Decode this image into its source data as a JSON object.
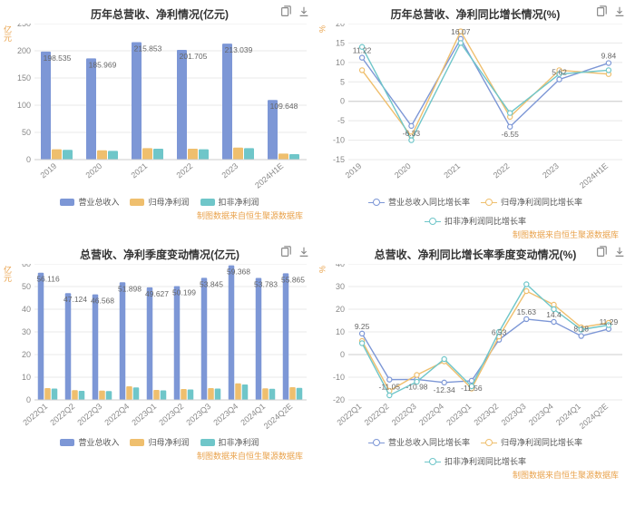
{
  "footer_note": "制图数据来自恒生聚源数据库",
  "common": {
    "grid_color": "#e8e8e8",
    "axis_color": "#cccccc",
    "tick_label_color": "#888888",
    "tick_fontsize": 9,
    "bar_label_color": "#666666",
    "bar_label_fontsize": 8.5,
    "background_color": "#ffffff"
  },
  "chart1": {
    "title": "历年总营收、净利情况(亿元)",
    "yaxis_title": "亿元",
    "type": "grouped-bar",
    "categories": [
      "2019",
      "2020",
      "2021",
      "2022",
      "2023",
      "2024H1E"
    ],
    "series": [
      {
        "name": "营业总收入",
        "color": "#7d97d6",
        "values": [
          198.535,
          185.969,
          215.853,
          201.705,
          213.039,
          109.648
        ]
      },
      {
        "name": "归母净利润",
        "color": "#efbf6e",
        "values": [
          19,
          17,
          21,
          20,
          22,
          11
        ]
      },
      {
        "name": "扣非净利润",
        "color": "#6fc6c9",
        "values": [
          18,
          16,
          20,
          19,
          21,
          10
        ]
      }
    ],
    "ylim": [
      0,
      250
    ],
    "ytick_step": 50,
    "bar_group_width": 0.72
  },
  "chart2": {
    "title": "历年总营收、净利同比增长情况(%)",
    "yaxis_title": "%",
    "type": "line",
    "categories": [
      "2019",
      "2020",
      "2021",
      "2022",
      "2023",
      "2024H1E"
    ],
    "series": [
      {
        "name": "营业总收入同比增长率",
        "color": "#7d97d6",
        "values": [
          11.22,
          -6.33,
          16.07,
          -6.55,
          5.62,
          9.84
        ]
      },
      {
        "name": "归母净利润同比增长率",
        "color": "#efbf6e",
        "values": [
          8,
          -9,
          18,
          -4,
          8,
          7
        ]
      },
      {
        "name": "扣非净利润同比增长率",
        "color": "#6fc6c9",
        "values": [
          14,
          -10,
          15,
          -3,
          7,
          8
        ]
      }
    ],
    "labeled": {
      "series": 0,
      "indices": [
        0,
        1,
        2,
        3,
        4,
        5
      ]
    },
    "ylim": [
      -15,
      20
    ],
    "ytick_step": 5
  },
  "chart3": {
    "title": "总营收、净利季度变动情况(亿元)",
    "yaxis_title": "亿元",
    "type": "grouped-bar",
    "categories": [
      "2022Q1",
      "2022Q2",
      "2022Q3",
      "2022Q4",
      "2023Q1",
      "2023Q2",
      "2023Q3",
      "2023Q4",
      "2024Q1",
      "2024Q2E"
    ],
    "series": [
      {
        "name": "营业总收入",
        "color": "#7d97d6",
        "values": [
          56.116,
          47.124,
          46.568,
          51.898,
          49.627,
          50.199,
          53.845,
          59.368,
          53.783,
          55.865
        ]
      },
      {
        "name": "归母净利润",
        "color": "#efbf6e",
        "values": [
          5.2,
          4.3,
          4.1,
          6.0,
          4.4,
          4.8,
          5.2,
          7.3,
          5.1,
          5.6
        ]
      },
      {
        "name": "扣非净利润",
        "color": "#6fc6c9",
        "values": [
          5.0,
          4.0,
          3.9,
          5.5,
          4.2,
          4.6,
          5.0,
          6.8,
          4.9,
          5.3
        ]
      }
    ],
    "ylim": [
      0,
      60
    ],
    "ytick_step": 10,
    "bar_group_width": 0.75
  },
  "chart4": {
    "title": "总营收、净利同比增长率季度变动情况(%)",
    "yaxis_title": "%",
    "type": "line",
    "categories": [
      "2022Q1",
      "2022Q2",
      "2022Q3",
      "2022Q4",
      "2023Q1",
      "2023Q2",
      "2023Q3",
      "2023Q4",
      "2024Q1",
      "2024Q2E"
    ],
    "series": [
      {
        "name": "营业总收入同比增长率",
        "color": "#7d97d6",
        "values": [
          9.25,
          -11.05,
          -10.98,
          -12.34,
          -11.56,
          6.53,
          15.63,
          14.4,
          8.18,
          11.29
        ]
      },
      {
        "name": "归母净利润同比增长率",
        "color": "#efbf6e",
        "values": [
          6,
          -16,
          -9,
          -3,
          -15,
          8,
          28,
          22,
          12,
          14
        ]
      },
      {
        "name": "扣非净利润同比增长率",
        "color": "#6fc6c9",
        "values": [
          5,
          -18,
          -12,
          -2,
          -14,
          10,
          31,
          20,
          11,
          13
        ]
      }
    ],
    "labeled": {
      "series": 0,
      "indices": [
        0,
        1,
        2,
        3,
        4,
        5,
        6,
        7,
        8,
        9
      ]
    },
    "ylim": [
      -20,
      40
    ],
    "ytick_step": 10
  }
}
